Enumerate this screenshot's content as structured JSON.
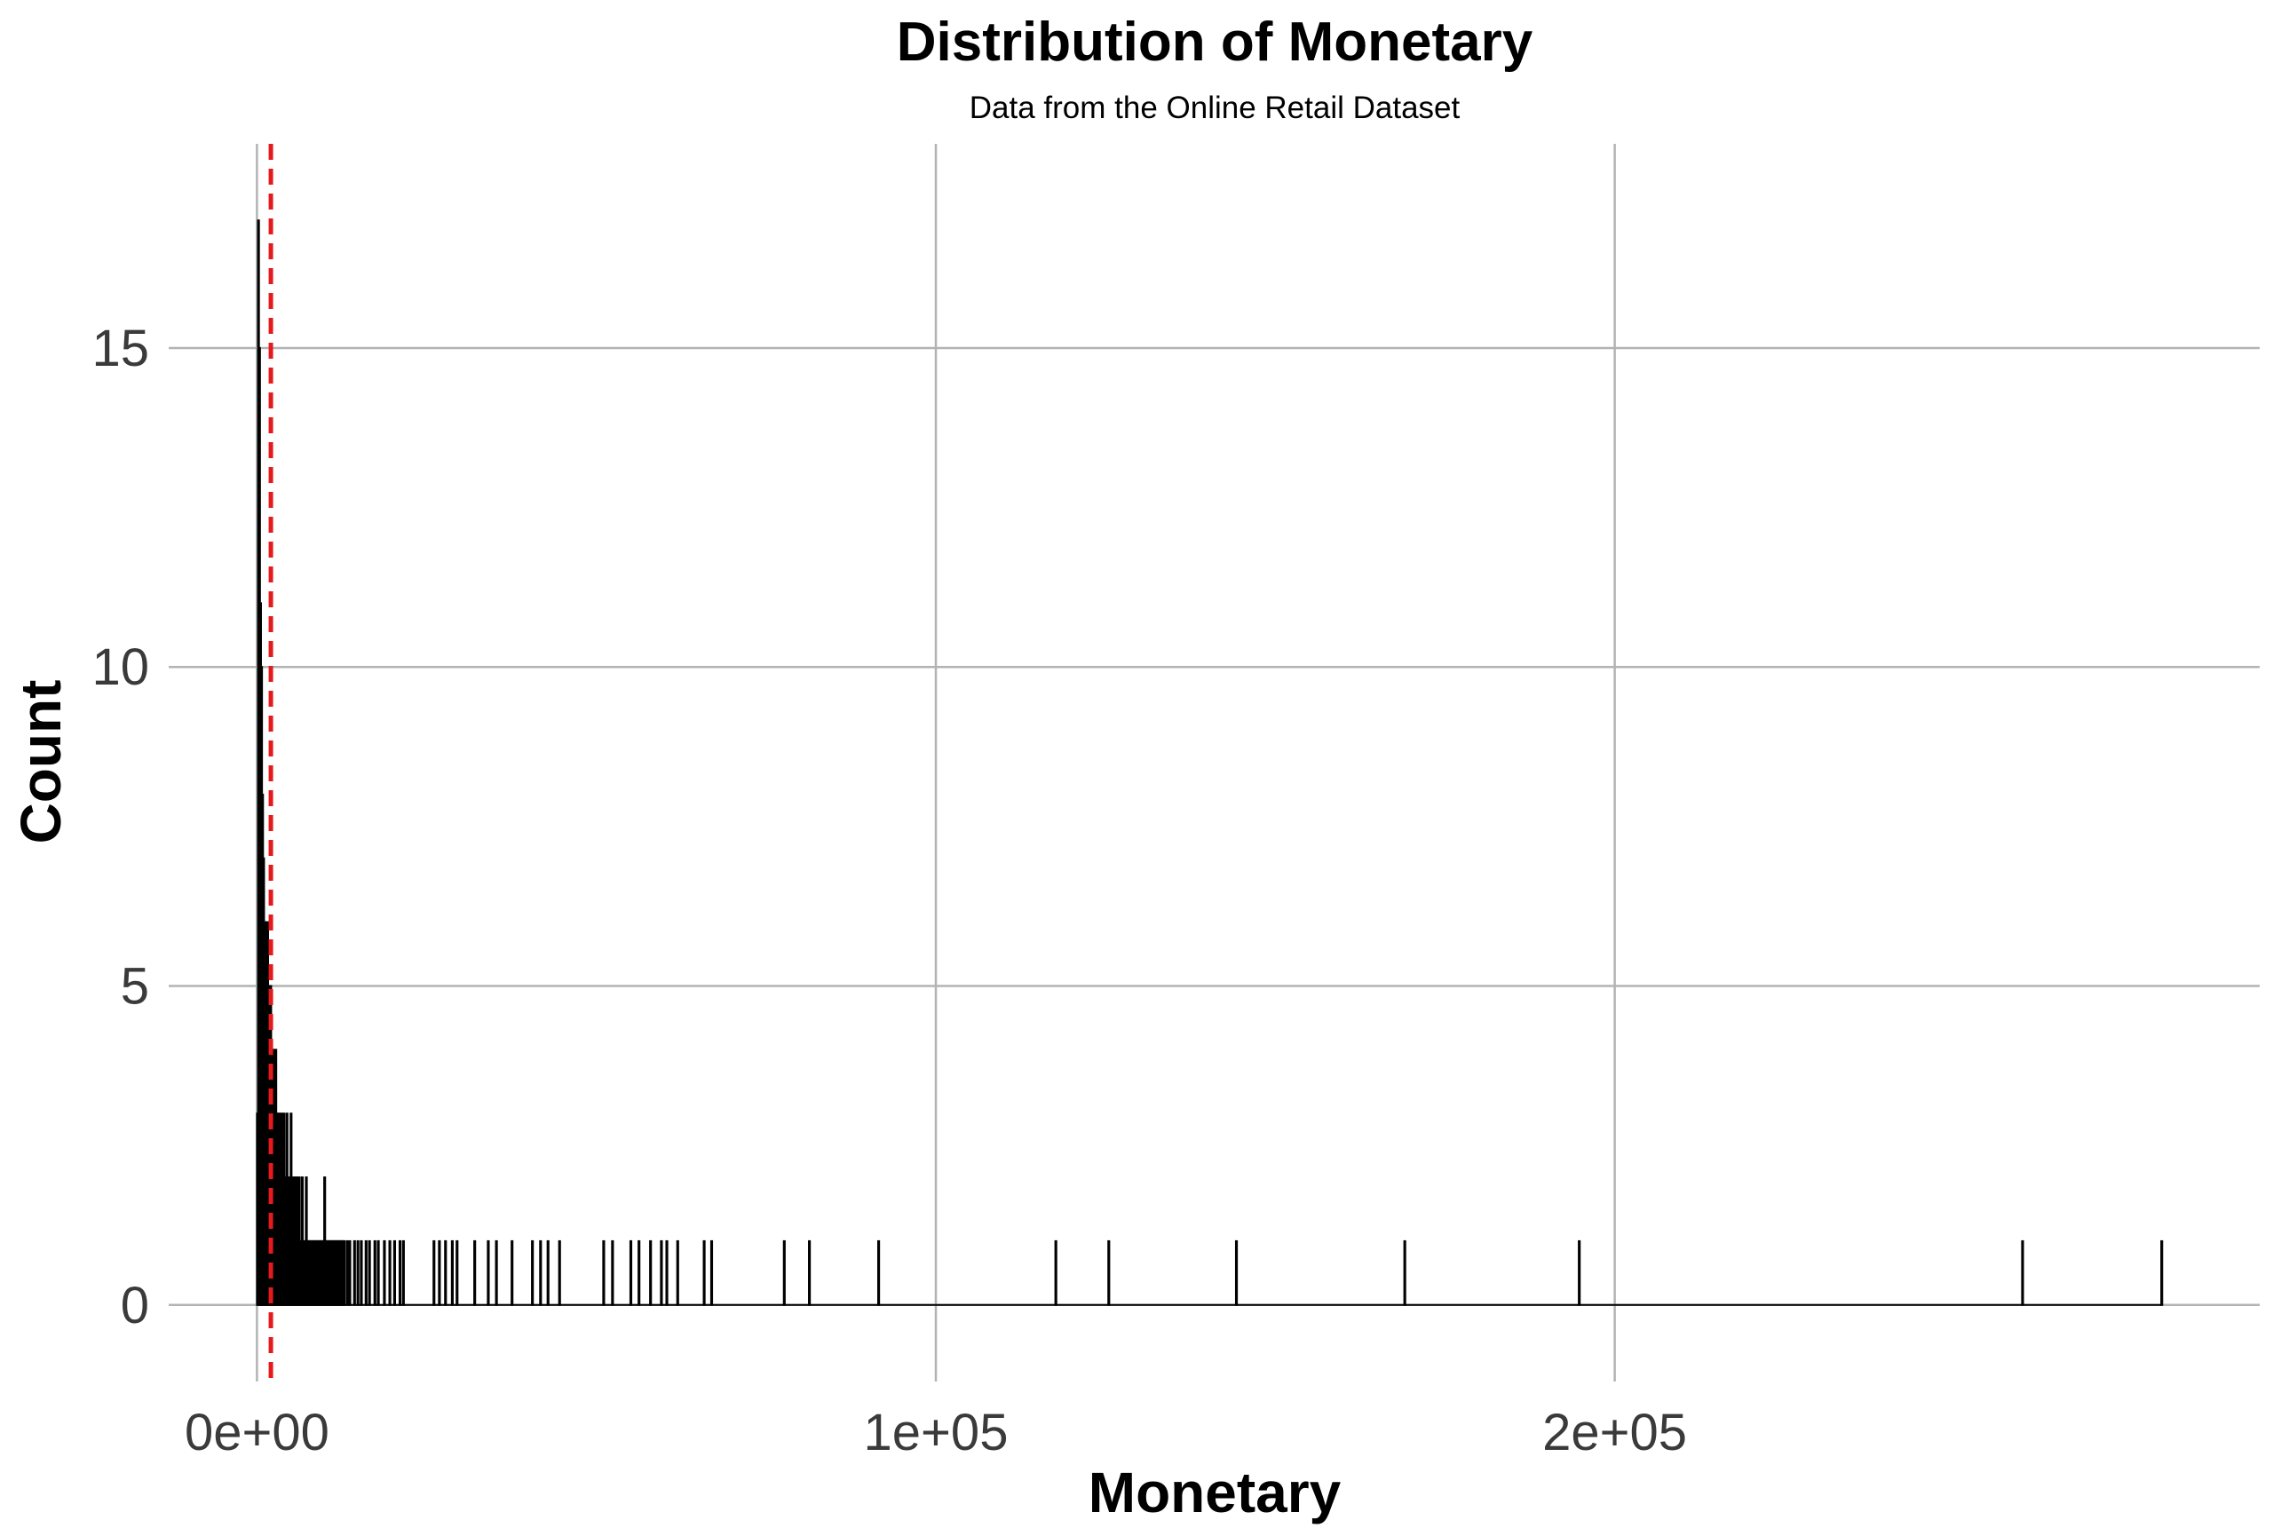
{
  "chart_data": {
    "type": "bar",
    "subtype": "histogram",
    "title": "Distribution of Monetary",
    "subtitle": "Data from the Online Retail Dataset",
    "xlabel": "Monetary",
    "ylabel": "Count",
    "xlim": [
      -13000,
      295000
    ],
    "ylim": [
      -1.2,
      18.2
    ],
    "x_ticks": [
      0,
      100000,
      200000
    ],
    "x_tick_labels": [
      "0e+00",
      "1e+05",
      "2e+05"
    ],
    "y_ticks": [
      0,
      5,
      10,
      15
    ],
    "y_tick_labels": [
      "0",
      "5",
      "10",
      "15"
    ],
    "grid": true,
    "grid_style": "major only",
    "bar_color": "#ffffff",
    "bar_edge_color": "#000000",
    "baseline_color": "#000000",
    "vline": {
      "x": 2050,
      "style": "dashed",
      "color": "#e41a1c"
    },
    "bars": [
      {
        "x": 0,
        "y": 3
      },
      {
        "x": 150,
        "y": 17
      },
      {
        "x": 300,
        "y": 15
      },
      {
        "x": 450,
        "y": 11
      },
      {
        "x": 600,
        "y": 10
      },
      {
        "x": 750,
        "y": 8
      },
      {
        "x": 900,
        "y": 7
      },
      {
        "x": 1050,
        "y": 6
      },
      {
        "x": 1200,
        "y": 6
      },
      {
        "x": 1350,
        "y": 5
      },
      {
        "x": 1500,
        "y": 6
      },
      {
        "x": 1650,
        "y": 5
      },
      {
        "x": 1800,
        "y": 4
      },
      {
        "x": 1950,
        "y": 5
      },
      {
        "x": 2100,
        "y": 4
      },
      {
        "x": 2250,
        "y": 3
      },
      {
        "x": 2400,
        "y": 4
      },
      {
        "x": 2550,
        "y": 3
      },
      {
        "x": 2700,
        "y": 4
      },
      {
        "x": 2850,
        "y": 3
      },
      {
        "x": 3000,
        "y": 3
      },
      {
        "x": 3150,
        "y": 2
      },
      {
        "x": 3300,
        "y": 3
      },
      {
        "x": 3450,
        "y": 2
      },
      {
        "x": 3600,
        "y": 3
      },
      {
        "x": 3750,
        "y": 2
      },
      {
        "x": 3900,
        "y": 3
      },
      {
        "x": 4050,
        "y": 2
      },
      {
        "x": 4200,
        "y": 1
      },
      {
        "x": 4350,
        "y": 3
      },
      {
        "x": 4500,
        "y": 2
      },
      {
        "x": 4650,
        "y": 1
      },
      {
        "x": 4800,
        "y": 2
      },
      {
        "x": 4950,
        "y": 3
      },
      {
        "x": 5100,
        "y": 1
      },
      {
        "x": 5250,
        "y": 2
      },
      {
        "x": 5400,
        "y": 1
      },
      {
        "x": 5550,
        "y": 2
      },
      {
        "x": 5700,
        "y": 1
      },
      {
        "x": 5850,
        "y": 2
      },
      {
        "x": 6000,
        "y": 1
      },
      {
        "x": 6150,
        "y": 2
      },
      {
        "x": 6300,
        "y": 1
      },
      {
        "x": 6450,
        "y": 1
      },
      {
        "x": 6600,
        "y": 2
      },
      {
        "x": 6750,
        "y": 1
      },
      {
        "x": 6900,
        "y": 1
      },
      {
        "x": 7050,
        "y": 1
      },
      {
        "x": 7200,
        "y": 2
      },
      {
        "x": 7350,
        "y": 1
      },
      {
        "x": 7500,
        "y": 1
      },
      {
        "x": 7650,
        "y": 1
      },
      {
        "x": 7800,
        "y": 1
      },
      {
        "x": 7950,
        "y": 1
      },
      {
        "x": 8100,
        "y": 1
      },
      {
        "x": 8250,
        "y": 1
      },
      {
        "x": 8400,
        "y": 1
      },
      {
        "x": 8550,
        "y": 1
      },
      {
        "x": 8700,
        "y": 1
      },
      {
        "x": 8850,
        "y": 1
      },
      {
        "x": 9000,
        "y": 1
      },
      {
        "x": 9150,
        "y": 1
      },
      {
        "x": 9300,
        "y": 1
      },
      {
        "x": 9450,
        "y": 1
      },
      {
        "x": 9600,
        "y": 1
      },
      {
        "x": 9750,
        "y": 1
      },
      {
        "x": 9900,
        "y": 2
      },
      {
        "x": 10050,
        "y": 1
      },
      {
        "x": 10200,
        "y": 1
      },
      {
        "x": 10350,
        "y": 1
      },
      {
        "x": 10500,
        "y": 1
      },
      {
        "x": 10650,
        "y": 1
      },
      {
        "x": 10800,
        "y": 1
      },
      {
        "x": 10950,
        "y": 1
      },
      {
        "x": 11100,
        "y": 1
      },
      {
        "x": 11250,
        "y": 1
      },
      {
        "x": 11400,
        "y": 1
      },
      {
        "x": 11550,
        "y": 1
      },
      {
        "x": 11700,
        "y": 1
      },
      {
        "x": 11850,
        "y": 1
      },
      {
        "x": 12000,
        "y": 1
      },
      {
        "x": 12150,
        "y": 1
      },
      {
        "x": 12300,
        "y": 1
      },
      {
        "x": 12450,
        "y": 1
      },
      {
        "x": 12600,
        "y": 1
      },
      {
        "x": 12750,
        "y": 1
      },
      {
        "x": 13200,
        "y": 1
      },
      {
        "x": 13600,
        "y": 1
      },
      {
        "x": 14300,
        "y": 1
      },
      {
        "x": 14800,
        "y": 1
      },
      {
        "x": 15300,
        "y": 1
      },
      {
        "x": 16000,
        "y": 1
      },
      {
        "x": 16500,
        "y": 1
      },
      {
        "x": 17300,
        "y": 1
      },
      {
        "x": 17800,
        "y": 1
      },
      {
        "x": 18700,
        "y": 1
      },
      {
        "x": 19500,
        "y": 1
      },
      {
        "x": 20200,
        "y": 1
      },
      {
        "x": 21000,
        "y": 1
      },
      {
        "x": 21500,
        "y": 1
      },
      {
        "x": 26000,
        "y": 1
      },
      {
        "x": 26800,
        "y": 1
      },
      {
        "x": 27700,
        "y": 1
      },
      {
        "x": 28700,
        "y": 1
      },
      {
        "x": 29400,
        "y": 1
      },
      {
        "x": 32000,
        "y": 1
      },
      {
        "x": 34000,
        "y": 1
      },
      {
        "x": 35200,
        "y": 1
      },
      {
        "x": 37500,
        "y": 1
      },
      {
        "x": 40500,
        "y": 1
      },
      {
        "x": 41700,
        "y": 1
      },
      {
        "x": 42800,
        "y": 1
      },
      {
        "x": 44500,
        "y": 1
      },
      {
        "x": 51000,
        "y": 1
      },
      {
        "x": 52300,
        "y": 1
      },
      {
        "x": 55000,
        "y": 1
      },
      {
        "x": 56200,
        "y": 1
      },
      {
        "x": 57900,
        "y": 1
      },
      {
        "x": 59500,
        "y": 1
      },
      {
        "x": 60300,
        "y": 1
      },
      {
        "x": 61900,
        "y": 1
      },
      {
        "x": 65800,
        "y": 1
      },
      {
        "x": 66900,
        "y": 1
      },
      {
        "x": 77600,
        "y": 1
      },
      {
        "x": 81300,
        "y": 1
      },
      {
        "x": 91500,
        "y": 1
      },
      {
        "x": 117600,
        "y": 1
      },
      {
        "x": 125400,
        "y": 1
      },
      {
        "x": 144200,
        "y": 1
      },
      {
        "x": 169000,
        "y": 1
      },
      {
        "x": 194700,
        "y": 1
      },
      {
        "x": 260000,
        "y": 1
      },
      {
        "x": 280500,
        "y": 1
      }
    ]
  }
}
